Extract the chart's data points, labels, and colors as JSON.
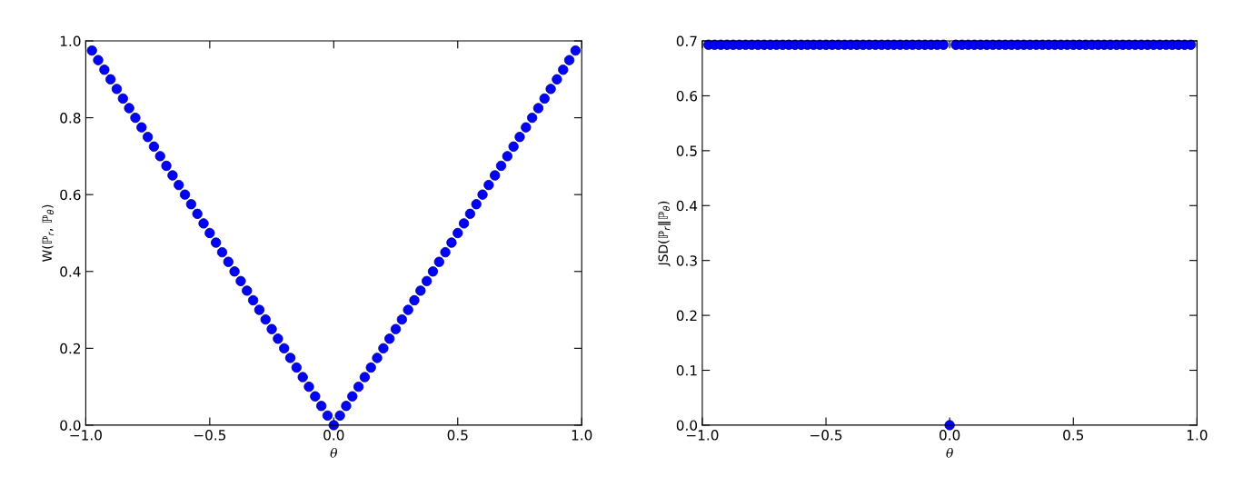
{
  "chart_data": [
    {
      "type": "scatter",
      "xlabel": "θ",
      "ylabel": "W(ℙ$_{r}$, ℙ$_{θ}$)",
      "marker": "circle",
      "grid": false,
      "legend": false,
      "xlim": [
        -1.0,
        1.0
      ],
      "ylim": [
        0.0,
        1.0
      ],
      "xticks": [
        {
          "value": -1.0,
          "label": "−1.0"
        },
        {
          "value": -0.5,
          "label": "−0.5"
        },
        {
          "value": 0.0,
          "label": "0.0"
        },
        {
          "value": 0.5,
          "label": "0.5"
        },
        {
          "value": 1.0,
          "label": "1.0"
        }
      ],
      "yticks": [
        {
          "value": 0.0,
          "label": "0.0"
        },
        {
          "value": 0.2,
          "label": "0.2"
        },
        {
          "value": 0.4,
          "label": "0.4"
        },
        {
          "value": 0.6,
          "label": "0.6"
        },
        {
          "value": 0.8,
          "label": "0.8"
        },
        {
          "value": 1.0,
          "label": "1.0"
        }
      ],
      "x": [
        -0.975,
        -0.95,
        -0.925,
        -0.9,
        -0.875,
        -0.85,
        -0.825,
        -0.8,
        -0.775,
        -0.75,
        -0.725,
        -0.7,
        -0.675,
        -0.65,
        -0.625,
        -0.6,
        -0.575,
        -0.55,
        -0.525,
        -0.5,
        -0.475,
        -0.45,
        -0.425,
        -0.4,
        -0.375,
        -0.35,
        -0.325,
        -0.3,
        -0.275,
        -0.25,
        -0.225,
        -0.2,
        -0.175,
        -0.15,
        -0.125,
        -0.1,
        -0.075,
        -0.05,
        -0.025,
        0,
        0.025,
        0.05,
        0.075,
        0.1,
        0.125,
        0.15,
        0.175,
        0.2,
        0.225,
        0.25,
        0.275,
        0.3,
        0.325,
        0.35,
        0.375,
        0.4,
        0.425,
        0.45,
        0.475,
        0.5,
        0.525,
        0.55,
        0.575,
        0.6,
        0.625,
        0.65,
        0.675,
        0.7,
        0.725,
        0.75,
        0.775,
        0.8,
        0.825,
        0.85,
        0.875,
        0.9,
        0.925,
        0.95,
        0.975
      ],
      "series": [
        {
          "color": "#0000ff",
          "values": [
            0.975,
            0.95,
            0.925,
            0.9,
            0.875,
            0.85,
            0.825,
            0.8,
            0.775,
            0.75,
            0.725,
            0.7,
            0.675,
            0.65,
            0.625,
            0.6,
            0.575,
            0.55,
            0.525,
            0.5,
            0.475,
            0.45,
            0.425,
            0.4,
            0.375,
            0.35,
            0.325,
            0.3,
            0.275,
            0.25,
            0.225,
            0.2,
            0.175,
            0.15,
            0.125,
            0.1,
            0.075,
            0.05,
            0.025,
            0,
            0.025,
            0.05,
            0.075,
            0.1,
            0.125,
            0.15,
            0.175,
            0.2,
            0.225,
            0.25,
            0.275,
            0.3,
            0.325,
            0.35,
            0.375,
            0.4,
            0.425,
            0.45,
            0.475,
            0.5,
            0.525,
            0.55,
            0.575,
            0.6,
            0.625,
            0.65,
            0.675,
            0.7,
            0.725,
            0.75,
            0.775,
            0.8,
            0.825,
            0.85,
            0.875,
            0.9,
            0.925,
            0.95,
            0.975
          ]
        }
      ]
    },
    {
      "type": "scatter",
      "xlabel": "θ",
      "ylabel": "JSD(ℙ$_{r}$‖ℙ$_{θ}$)",
      "marker": "circle",
      "grid": false,
      "legend": false,
      "xlim": [
        -1.0,
        1.0
      ],
      "ylim": [
        0.0,
        0.7
      ],
      "xticks": [
        {
          "value": -1.0,
          "label": "−1.0"
        },
        {
          "value": -0.5,
          "label": "−0.5"
        },
        {
          "value": 0.0,
          "label": "0.0"
        },
        {
          "value": 0.5,
          "label": "0.5"
        },
        {
          "value": 1.0,
          "label": "1.0"
        }
      ],
      "yticks": [
        {
          "value": 0.0,
          "label": "0.0"
        },
        {
          "value": 0.1,
          "label": "0.1"
        },
        {
          "value": 0.2,
          "label": "0.2"
        },
        {
          "value": 0.3,
          "label": "0.3"
        },
        {
          "value": 0.4,
          "label": "0.4"
        },
        {
          "value": 0.5,
          "label": "0.5"
        },
        {
          "value": 0.6,
          "label": "0.6"
        },
        {
          "value": 0.7,
          "label": "0.7"
        }
      ],
      "x": [
        -0.975,
        -0.95,
        -0.925,
        -0.9,
        -0.875,
        -0.85,
        -0.825,
        -0.8,
        -0.775,
        -0.75,
        -0.725,
        -0.7,
        -0.675,
        -0.65,
        -0.625,
        -0.6,
        -0.575,
        -0.55,
        -0.525,
        -0.5,
        -0.475,
        -0.45,
        -0.425,
        -0.4,
        -0.375,
        -0.35,
        -0.325,
        -0.3,
        -0.275,
        -0.25,
        -0.225,
        -0.2,
        -0.175,
        -0.15,
        -0.125,
        -0.1,
        -0.075,
        -0.05,
        -0.025,
        0,
        0.025,
        0.05,
        0.075,
        0.1,
        0.125,
        0.15,
        0.175,
        0.2,
        0.225,
        0.25,
        0.275,
        0.3,
        0.325,
        0.35,
        0.375,
        0.4,
        0.425,
        0.45,
        0.475,
        0.5,
        0.525,
        0.55,
        0.575,
        0.6,
        0.625,
        0.65,
        0.675,
        0.7,
        0.725,
        0.75,
        0.775,
        0.8,
        0.825,
        0.85,
        0.875,
        0.9,
        0.925,
        0.95,
        0.975
      ],
      "series": [
        {
          "color": "#0000ff",
          "values": [
            0.693,
            0.693,
            0.693,
            0.693,
            0.693,
            0.693,
            0.693,
            0.693,
            0.693,
            0.693,
            0.693,
            0.693,
            0.693,
            0.693,
            0.693,
            0.693,
            0.693,
            0.693,
            0.693,
            0.693,
            0.693,
            0.693,
            0.693,
            0.693,
            0.693,
            0.693,
            0.693,
            0.693,
            0.693,
            0.693,
            0.693,
            0.693,
            0.693,
            0.693,
            0.693,
            0.693,
            0.693,
            0.693,
            0.693,
            0,
            0.693,
            0.693,
            0.693,
            0.693,
            0.693,
            0.693,
            0.693,
            0.693,
            0.693,
            0.693,
            0.693,
            0.693,
            0.693,
            0.693,
            0.693,
            0.693,
            0.693,
            0.693,
            0.693,
            0.693,
            0.693,
            0.693,
            0.693,
            0.693,
            0.693,
            0.693,
            0.693,
            0.693,
            0.693,
            0.693,
            0.693,
            0.693,
            0.693,
            0.693,
            0.693,
            0.693,
            0.693,
            0.693,
            0.693
          ]
        }
      ]
    }
  ]
}
